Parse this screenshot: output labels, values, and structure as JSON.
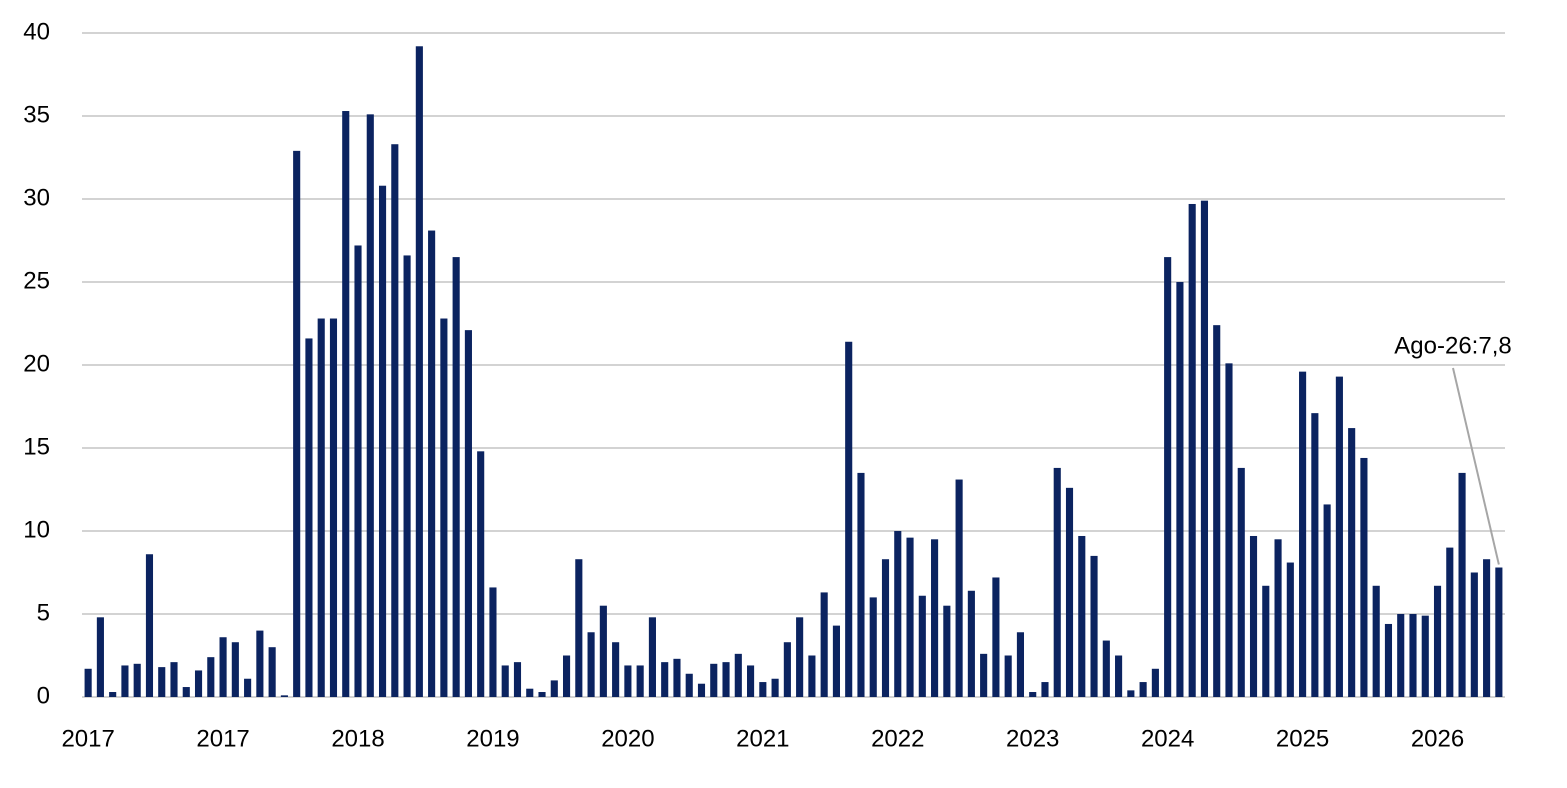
{
  "chart_data": {
    "type": "bar",
    "categories": [
      "2017",
      null,
      null,
      null,
      null,
      null,
      null,
      null,
      null,
      null,
      null,
      "2017",
      null,
      null,
      null,
      null,
      null,
      null,
      null,
      null,
      null,
      null,
      "2018",
      null,
      null,
      null,
      null,
      null,
      null,
      null,
      null,
      null,
      null,
      "2019",
      null,
      null,
      null,
      null,
      null,
      null,
      null,
      null,
      null,
      null,
      "2020",
      null,
      null,
      null,
      null,
      null,
      null,
      null,
      null,
      null,
      null,
      "2021",
      null,
      null,
      null,
      null,
      null,
      null,
      null,
      null,
      null,
      null,
      "2022",
      null,
      null,
      null,
      null,
      null,
      null,
      null,
      null,
      null,
      null,
      "2023",
      null,
      null,
      null,
      null,
      null,
      null,
      null,
      null,
      null,
      null,
      "2024",
      null,
      null,
      null,
      null,
      null,
      null,
      null,
      null,
      null,
      null,
      "2025",
      null,
      null,
      null,
      null,
      null,
      null,
      null,
      null,
      null,
      null,
      "2026",
      null,
      null,
      null,
      null,
      null
    ],
    "values": [
      1.7,
      4.8,
      0.3,
      1.9,
      2.0,
      8.6,
      1.8,
      2.1,
      0.6,
      1.6,
      2.4,
      3.6,
      3.3,
      1.1,
      4.0,
      3.0,
      0.1,
      32.9,
      21.6,
      22.8,
      22.8,
      35.3,
      27.2,
      35.1,
      30.8,
      33.3,
      26.6,
      39.2,
      28.1,
      22.8,
      26.5,
      22.1,
      14.8,
      6.6,
      1.9,
      2.1,
      0.5,
      0.3,
      1.0,
      2.5,
      8.3,
      3.9,
      5.5,
      3.3,
      1.9,
      1.9,
      4.8,
      2.1,
      2.3,
      1.4,
      0.8,
      2.0,
      2.1,
      2.6,
      1.9,
      0.9,
      1.1,
      3.3,
      4.8,
      2.5,
      6.3,
      4.3,
      21.4,
      13.5,
      6.0,
      8.3,
      10.0,
      9.6,
      6.1,
      9.5,
      5.5,
      13.1,
      6.4,
      2.6,
      7.2,
      2.5,
      3.9,
      0.3,
      0.9,
      13.8,
      12.6,
      9.7,
      8.5,
      3.4,
      2.5,
      0.4,
      0.9,
      1.7,
      26.5,
      25.0,
      29.7,
      29.9,
      22.4,
      20.1,
      13.8,
      9.7,
      6.7,
      9.5,
      8.1,
      19.6,
      17.1,
      11.6,
      19.3,
      16.2,
      14.4,
      6.7,
      4.4,
      5.0,
      5.0,
      4.9,
      6.7,
      9.0,
      13.5,
      7.5,
      8.3,
      7.8
    ],
    "color": "#0b2360",
    "ylim": [
      0,
      40
    ],
    "yticks": [
      0,
      5,
      10,
      15,
      20,
      25,
      30,
      35,
      40
    ],
    "grid": true,
    "annotation": "Ago-26:7,8"
  }
}
